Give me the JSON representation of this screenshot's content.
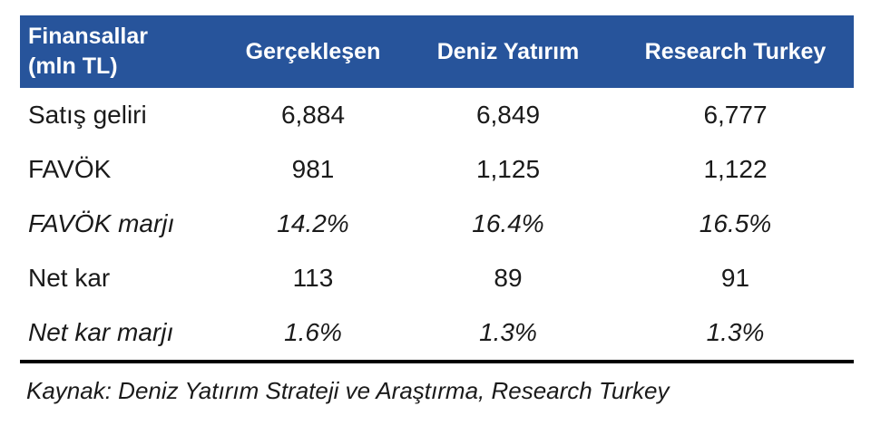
{
  "chart_data": {
    "type": "table",
    "title": "Finansallar (mln TL)",
    "columns": [
      "Gerçekleşen",
      "Deniz Yatırım",
      "Research Turkey"
    ],
    "rows": [
      {
        "label": "Satış geliri",
        "values": [
          "6,884",
          "6,849",
          "6,777"
        ],
        "style": "normal"
      },
      {
        "label": "FAVÖK",
        "values": [
          "981",
          "1,125",
          "1,122"
        ],
        "style": "normal"
      },
      {
        "label": "FAVÖK marjı",
        "values": [
          "14.2%",
          "16.4%",
          "16.5%"
        ],
        "style": "italic"
      },
      {
        "label": "Net kar",
        "values": [
          "113",
          "89",
          "91"
        ],
        "style": "normal"
      },
      {
        "label": "Net kar marjı",
        "values": [
          "1.6%",
          "1.3%",
          "1.3%"
        ],
        "style": "italic"
      }
    ],
    "source_note": "Kaynak: Deniz Yatırım Strateji ve Araştırma, Research Turkey"
  },
  "header": {
    "title_line1": "Finansallar",
    "title_line2": "(mln TL)"
  },
  "colors": {
    "header_bg": "#27549B",
    "header_text": "#ffffff",
    "body_text": "#1a1a1a",
    "rule": "#000000"
  }
}
